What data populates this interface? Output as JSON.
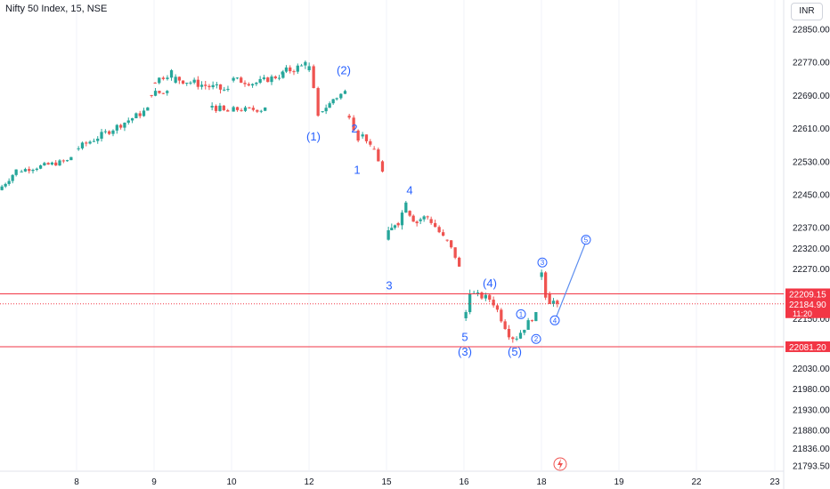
{
  "title": "Nifty 50 Index, 15, NSE",
  "currency": "INR",
  "colors": {
    "up": "#26a69a",
    "down": "#ef5350",
    "wave_label": "#2962ff",
    "level_line": "#f23645",
    "background": "#ffffff",
    "axis_text": "#131722",
    "grid": "#f0f3fa"
  },
  "chart_data": {
    "type": "candlestick",
    "symbol": "Nifty 50 Index",
    "interval": "15",
    "exchange": "NSE",
    "x_ticks": [
      "8",
      "9",
      "10",
      "12",
      "15",
      "16",
      "18",
      "19",
      "22",
      "23"
    ],
    "y_ticks": [
      "22850.00",
      "22770.00",
      "22690.00",
      "22610.00",
      "22530.00",
      "22450.00",
      "22370.00",
      "22320.00",
      "22270.00",
      "22150.00",
      "22030.00",
      "21980.00",
      "21930.00",
      "21880.00",
      "21836.00",
      "21793.50"
    ],
    "ylim": [
      21780,
      22920
    ],
    "price_labels": [
      {
        "value": "22209.15",
        "price": 22209.15,
        "kind": "level"
      },
      {
        "value": "22184.90",
        "price": 22184.9,
        "kind": "last",
        "countdown": "11:20"
      },
      {
        "value": "22081.20",
        "price": 22081.2,
        "kind": "level"
      }
    ],
    "horizontal_levels": [
      22209.15,
      22081.2
    ],
    "last_price": 22184.9,
    "segments": [
      {
        "start": [
          22460,
          22478
        ],
        "end": [
          22505,
          22510
        ],
        "vol": 9,
        "step": 0
      },
      {
        "start": [
          22505,
          22512
        ],
        "end": [
          22525,
          22540
        ],
        "vol": 8,
        "step": 0
      },
      {
        "start": [
          22560,
          22565
        ],
        "end": [
          22650,
          22660
        ],
        "vol": 10,
        "step": 0
      },
      {
        "start": [
          22690,
          22700
        ],
        "end": [
          22690,
          22700
        ],
        "vol": 10,
        "step": 0
      },
      {
        "start": [
          22720,
          22730
        ],
        "end": [
          22740,
          22750
        ],
        "vol": 10,
        "step": 0
      },
      {
        "start": [
          22720,
          22740
        ],
        "end": [
          22695,
          22705
        ],
        "vol": 12,
        "step": 0
      },
      {
        "start": [
          22660,
          22670
        ],
        "end": [
          22640,
          22650
        ],
        "vol": 12,
        "step": 0
      },
      {
        "start": [
          22650,
          22660
        ],
        "end": [
          22650,
          22660
        ],
        "vol": 8,
        "step": 0
      },
      {
        "start": [
          22725,
          22730
        ],
        "end": [
          22715,
          22720
        ],
        "vol": 10,
        "step": 0
      },
      {
        "start": [
          22720,
          22725
        ],
        "end": [
          22735,
          22745
        ],
        "vol": 10,
        "step": 0
      },
      {
        "start": [
          22740,
          22750
        ],
        "end": [
          22755,
          22770
        ],
        "vol": 12,
        "step": 0
      },
      {
        "start": [
          22750,
          22760
        ],
        "end": [
          22650,
          22640
        ],
        "vol": 12,
        "step": 0
      },
      {
        "start": [
          22650,
          22660
        ],
        "end": [
          22670,
          22680
        ],
        "vol": 10,
        "step": 0
      },
      {
        "start": [
          22680,
          22690
        ],
        "end": [
          22698,
          22700
        ],
        "vol": 8,
        "step": 0
      },
      {
        "start": [
          22640,
          22650
        ],
        "end": [
          22585,
          22580
        ],
        "vol": 12,
        "step": 0
      },
      {
        "start": [
          22590,
          22595
        ],
        "end": [
          22575,
          22570
        ],
        "vol": 8,
        "step": 0
      },
      {
        "start": [
          22560,
          22555
        ],
        "end": [
          22510,
          22505
        ],
        "vol": 9,
        "step": 0
      },
      {
        "start": [
          22340,
          22360
        ],
        "end": [
          22380,
          22375
        ],
        "vol": 18,
        "step": 0
      },
      {
        "start": [
          22380,
          22390
        ],
        "end": [
          22420,
          22430
        ],
        "vol": 14,
        "step": 0
      },
      {
        "start": [
          22410,
          22400
        ],
        "end": [
          22375,
          22380
        ],
        "vol": 12,
        "step": 0
      },
      {
        "start": [
          22385,
          22395
        ],
        "end": [
          22400,
          22395
        ],
        "vol": 10,
        "step": 0
      },
      {
        "start": [
          22390,
          22380
        ],
        "end": [
          22340,
          22350
        ],
        "vol": 12,
        "step": 0
      },
      {
        "start": [
          22340,
          22330
        ],
        "end": [
          22290,
          22275
        ],
        "vol": 10,
        "step": 0
      },
      {
        "start": [
          22150,
          22180
        ],
        "end": [
          22200,
          22210
        ],
        "vol": 15,
        "step": 0
      },
      {
        "start": [
          22210,
          22205
        ],
        "end": [
          22200,
          22195
        ],
        "vol": 10,
        "step": 0
      },
      {
        "start": [
          22195,
          22180
        ],
        "end": [
          22090,
          22100
        ],
        "vol": 12,
        "step": 0
      },
      {
        "start": [
          22100,
          22110
        ],
        "end": [
          22160,
          22165
        ],
        "vol": 10,
        "step": 0
      },
      {
        "start": [
          22250,
          22285
        ],
        "end": [
          22215,
          22200
        ],
        "vol": 15,
        "step": 0
      },
      {
        "start": [
          22210,
          22175
        ],
        "end": [
          22195,
          22185
        ],
        "vol": 12,
        "step": 0
      }
    ],
    "wave_annotations": [
      {
        "text": "(1)",
        "style": "text",
        "price": 22580,
        "slot": 0
      },
      {
        "text": "(2)",
        "style": "text",
        "price": 22740,
        "slot": 1
      },
      {
        "text": "2",
        "style": "text",
        "price": 22600,
        "slot": 2
      },
      {
        "text": "1",
        "style": "text",
        "price": 22500,
        "slot": 3
      },
      {
        "text": "4",
        "style": "text",
        "price": 22450,
        "slot": 4
      },
      {
        "text": "3",
        "style": "text",
        "price": 22220,
        "slot": 5
      },
      {
        "text": "(4)",
        "style": "text",
        "price": 22225,
        "slot": 6
      },
      {
        "text": "5",
        "style": "text",
        "price": 22095,
        "slot": 7
      },
      {
        "text": "(3)",
        "style": "text",
        "price": 22060,
        "slot": 8
      },
      {
        "text": "(5)",
        "style": "text",
        "price": 22060,
        "slot": 9
      },
      {
        "text": "1",
        "style": "circle",
        "price": 22160,
        "slot": 10
      },
      {
        "text": "2",
        "style": "circle",
        "price": 22100,
        "slot": 11
      },
      {
        "text": "3",
        "style": "circle",
        "price": 22285,
        "slot": 12
      },
      {
        "text": "4",
        "style": "circle",
        "price": 22145,
        "slot": 13
      },
      {
        "text": "5",
        "style": "circle",
        "price": 22340,
        "slot": 14
      }
    ],
    "projection": {
      "from_price": 22150,
      "to_price": 22330
    }
  }
}
